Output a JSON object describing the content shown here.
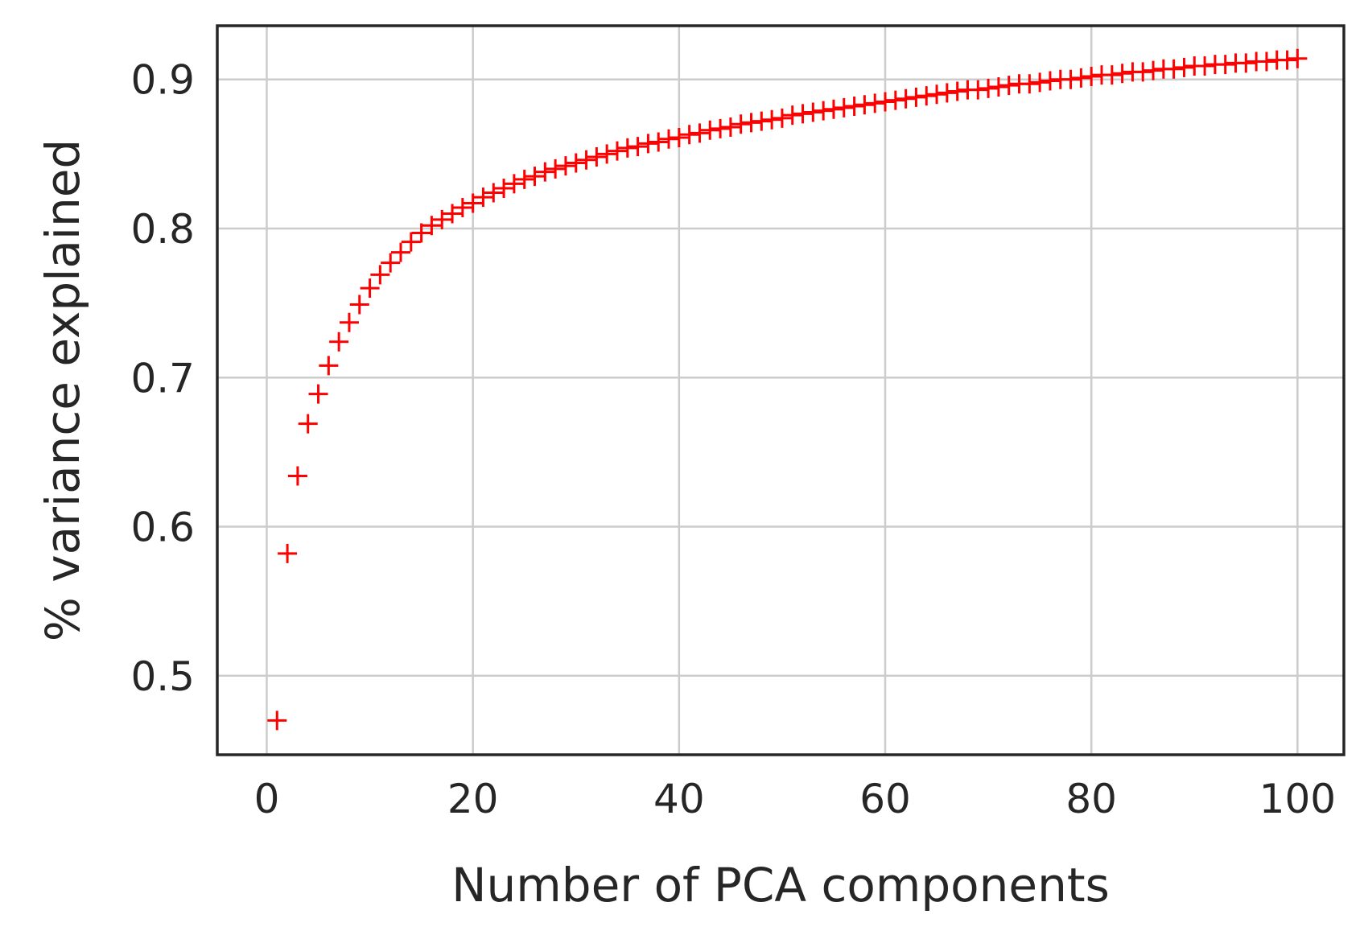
{
  "chart_data": {
    "type": "scatter",
    "title": "",
    "xlabel": "Number of PCA components",
    "ylabel": "% variance explained",
    "xlim": [
      -4.8,
      104.5
    ],
    "ylim": [
      0.447,
      0.936
    ],
    "xticks": [
      0,
      20,
      40,
      60,
      80,
      100
    ],
    "xtick_labels": [
      "0",
      "20",
      "40",
      "60",
      "80",
      "100"
    ],
    "yticks": [
      0.5,
      0.6,
      0.7,
      0.8,
      0.9
    ],
    "ytick_labels": [
      "0.5",
      "0.6",
      "0.7",
      "0.8",
      "0.9"
    ],
    "grid": true,
    "legend": "none",
    "marker": "+",
    "color": "#ff0000",
    "series": [
      {
        "x": [
          1,
          2,
          3,
          4,
          5,
          6,
          7,
          8,
          9,
          10,
          11,
          12,
          13,
          14,
          15,
          16,
          17,
          18,
          19,
          20,
          21,
          22,
          23,
          24,
          25,
          26,
          27,
          28,
          29,
          30,
          31,
          32,
          33,
          34,
          35,
          36,
          37,
          38,
          39,
          40,
          41,
          42,
          43,
          44,
          45,
          46,
          47,
          48,
          49,
          50,
          51,
          52,
          53,
          54,
          55,
          56,
          57,
          58,
          59,
          60,
          61,
          62,
          63,
          64,
          65,
          66,
          67,
          68,
          69,
          70,
          71,
          72,
          73,
          74,
          75,
          76,
          77,
          78,
          79,
          80,
          81,
          82,
          83,
          84,
          85,
          86,
          87,
          88,
          89,
          90,
          91,
          92,
          93,
          94,
          95,
          96,
          97,
          98,
          99,
          100
        ],
        "values": [
          0.47,
          0.582,
          0.634,
          0.669,
          0.689,
          0.708,
          0.724,
          0.737,
          0.749,
          0.76,
          0.769,
          0.777,
          0.784,
          0.791,
          0.797,
          0.802,
          0.806,
          0.81,
          0.814,
          0.817,
          0.821,
          0.824,
          0.827,
          0.83,
          0.833,
          0.835,
          0.838,
          0.84,
          0.842,
          0.844,
          0.846,
          0.848,
          0.85,
          0.852,
          0.854,
          0.855,
          0.857,
          0.858,
          0.86,
          0.861,
          0.863,
          0.864,
          0.866,
          0.867,
          0.868,
          0.87,
          0.871,
          0.872,
          0.873,
          0.874,
          0.876,
          0.877,
          0.878,
          0.879,
          0.88,
          0.881,
          0.882,
          0.883,
          0.884,
          0.885,
          0.886,
          0.887,
          0.888,
          0.889,
          0.89,
          0.891,
          0.892,
          0.893,
          0.893,
          0.894,
          0.895,
          0.896,
          0.897,
          0.897,
          0.898,
          0.899,
          0.9,
          0.9,
          0.901,
          0.902,
          0.903,
          0.903,
          0.904,
          0.905,
          0.905,
          0.906,
          0.907,
          0.907,
          0.908,
          0.909,
          0.909,
          0.91,
          0.91,
          0.911,
          0.911,
          0.912,
          0.912,
          0.913,
          0.913,
          0.914
        ]
      }
    ]
  }
}
